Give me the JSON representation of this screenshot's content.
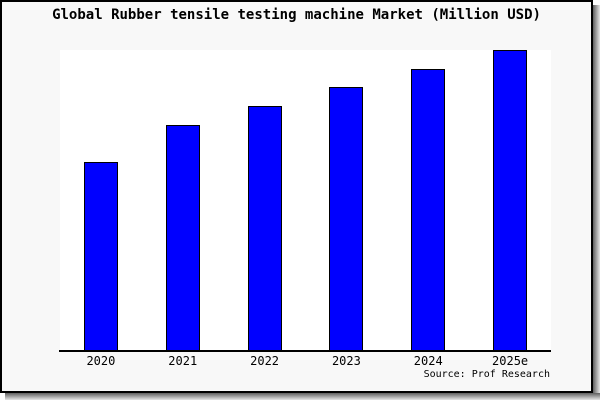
{
  "window": {
    "background_color": "#f8f8f8",
    "frame_border_color": "#000000",
    "drop_shadow": true
  },
  "chart_data": {
    "type": "bar",
    "title": "Global Rubber tensile testing machine Market (Million USD)",
    "categories": [
      "2020",
      "2021",
      "2022",
      "2023",
      "2024",
      "2025e"
    ],
    "values_relative_pct": [
      62.7,
      75.0,
      81.3,
      87.7,
      93.7,
      100.0
    ],
    "y_axis": {
      "labels_shown": false,
      "gridlines_shown": false,
      "note": "y-axis is unlabeled; values estimated as percent of tallest (2025e) bar"
    },
    "bar_color": "#0000ff",
    "bar_border_color": "#000000",
    "plot_background": "#ffffff",
    "legend": "none",
    "source_note": "Source: Prof Research"
  }
}
